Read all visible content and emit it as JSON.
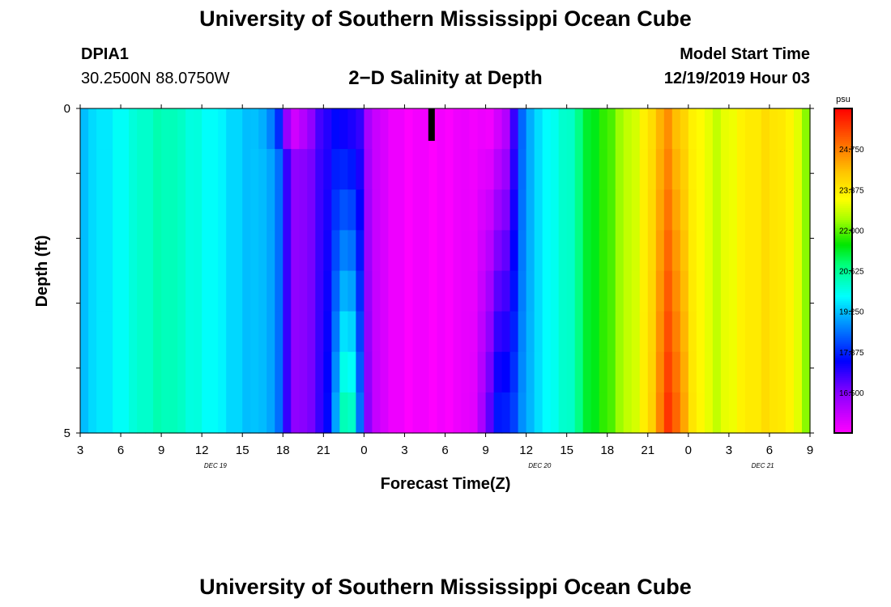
{
  "header": {
    "title": "University of Southern Mississippi Ocean Cube",
    "station_id": "DPIA1",
    "station_coords": "30.2500N 88.0750W",
    "plot_title": "2−D Salinity at Depth",
    "model_label": "Model Start Time",
    "model_time": "12/19/2019 Hour 03"
  },
  "footer": {
    "title": "University of Southern Mississippi Ocean Cube"
  },
  "chart_data": {
    "type": "heatmap",
    "title": "2−D Salinity at Depth",
    "xlabel": "Forecast Time(Z)",
    "ylabel": "Depth (ft)",
    "units": "psu",
    "ylim": [
      0,
      5
    ],
    "y_ticks": [
      "0",
      "5"
    ],
    "x_start_hour": 3,
    "x_end_hour": 57,
    "x_tick_labels": [
      "3",
      "6",
      "9",
      "12",
      "15",
      "18",
      "21",
      "0",
      "3",
      "6",
      "9",
      "12",
      "15",
      "18",
      "21",
      "0",
      "3",
      "6",
      "9"
    ],
    "day_labels": [
      {
        "label": "DEC 19",
        "hour": 13
      },
      {
        "label": "DEC 20",
        "hour": 37
      },
      {
        "label": "DEC 21",
        "hour": 53.5
      }
    ],
    "current_time_marker_hour": 29,
    "colorbar": {
      "min": 15.125,
      "max": 26.125,
      "ticks": [
        "24.750",
        "23.375",
        "22.000",
        "20.625",
        "19.250",
        "17.875",
        "16.500"
      ]
    },
    "depth_rows": 8,
    "columns": 90,
    "salinity_profiles": [
      [
        3,
        19.2
      ],
      [
        6,
        19.8
      ],
      [
        9,
        20.4
      ],
      [
        12,
        19.9
      ],
      [
        15,
        19.3
      ],
      [
        17.5,
        19.0
      ],
      [
        18,
        17.6
      ],
      [
        19,
        16.2
      ],
      [
        20,
        16.6
      ],
      [
        21,
        17.2
      ],
      [
        22,
        17.8
      ],
      [
        23.5,
        17.8
      ],
      [
        24,
        16.5
      ],
      [
        25,
        15.6
      ],
      [
        27,
        15.2
      ],
      [
        30,
        15.2
      ],
      [
        33,
        15.4
      ],
      [
        34.5,
        16.2
      ],
      [
        35.2,
        17.5
      ],
      [
        36,
        19.0
      ],
      [
        38,
        19.9
      ],
      [
        39.5,
        20.3
      ],
      [
        40.5,
        21.2
      ],
      [
        42,
        21.8
      ],
      [
        43,
        22.3
      ],
      [
        44,
        22.7
      ],
      [
        45.5,
        23.8
      ],
      [
        46.5,
        24.5
      ],
      [
        47.5,
        23.8
      ],
      [
        48.5,
        23.2
      ],
      [
        50,
        22.6
      ],
      [
        52,
        23.2
      ],
      [
        54,
        23.6
      ],
      [
        56,
        23.0
      ],
      [
        57,
        21.8
      ]
    ]
  }
}
